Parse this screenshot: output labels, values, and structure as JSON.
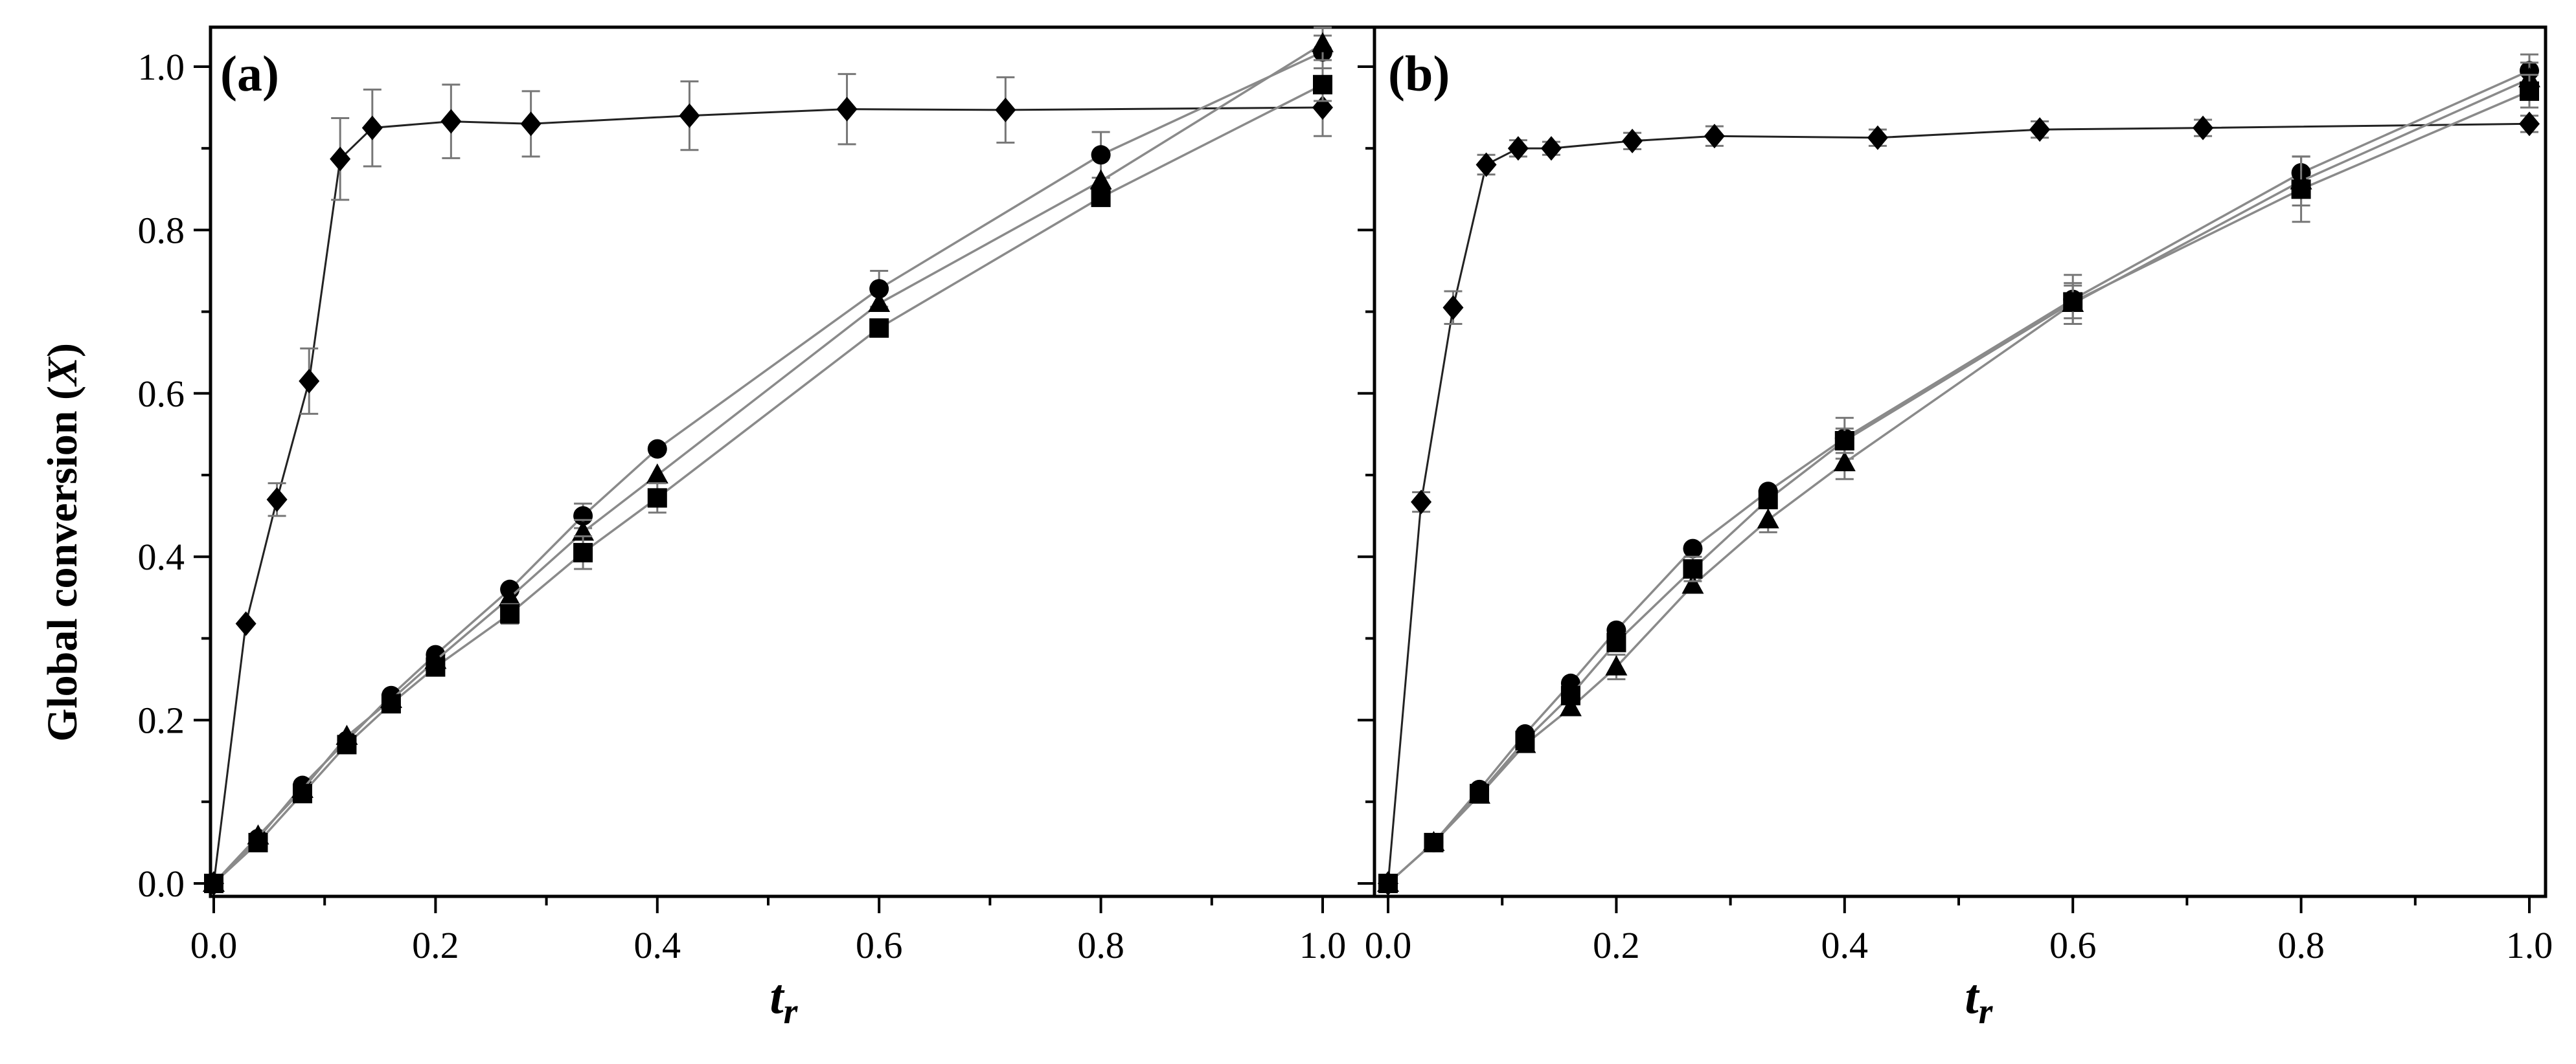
{
  "figure": {
    "ylabel": "Global conversion (",
    "ylabel_var": "X",
    "ylabel_close": ")",
    "xlabel_main": "t",
    "xlabel_sub": "r"
  },
  "colors": {
    "marker": "#000000",
    "line_dark": "#222222",
    "line_grey": "#8a8a8a",
    "errorbar": "#777777",
    "frame": "#000000"
  },
  "chart_data": [
    {
      "type": "line",
      "panel_label": "(a)",
      "xlim": [
        0.0,
        1.0
      ],
      "ylim": [
        0.0,
        1.0
      ],
      "x_ticks": [
        0.0,
        0.2,
        0.4,
        0.6,
        0.8,
        1.0
      ],
      "x_tick_labels": [
        "0.0",
        "0.2",
        "0.4",
        "0.6",
        "0.8",
        "1.0"
      ],
      "y_ticks": [
        0.0,
        0.2,
        0.4,
        0.6,
        0.8,
        1.0
      ],
      "y_tick_labels": [
        "0.0",
        "0.2",
        "0.4",
        "0.6",
        "0.8",
        "1.0"
      ],
      "grid": false,
      "series": [
        {
          "marker": "diamond",
          "line": "dark",
          "x": [
            0.0,
            0.029,
            0.057,
            0.086,
            0.114,
            0.143,
            0.214,
            0.286,
            0.429,
            0.571,
            0.714,
            1.0
          ],
          "y": [
            0.0,
            0.318,
            0.47,
            0.615,
            0.887,
            0.925,
            0.933,
            0.93,
            0.94,
            0.948,
            0.947,
            0.95
          ],
          "err": [
            0,
            0,
            0.02,
            0.04,
            0.05,
            0.047,
            0.045,
            0.04,
            0.042,
            0.043,
            0.04,
            0.035
          ]
        },
        {
          "marker": "circle",
          "line": "grey",
          "x": [
            0.0,
            0.04,
            0.08,
            0.12,
            0.16,
            0.2,
            0.267,
            0.333,
            0.4,
            0.6,
            0.8,
            1.0
          ],
          "y": [
            0.0,
            0.055,
            0.12,
            0.175,
            0.23,
            0.28,
            0.36,
            0.45,
            0.532,
            0.728,
            0.892,
            1.018
          ],
          "err": [
            0,
            0,
            0,
            0,
            0,
            0,
            0,
            0.015,
            0,
            0.022,
            0.028,
            0.02
          ]
        },
        {
          "marker": "triangle",
          "line": "grey",
          "x": [
            0.0,
            0.04,
            0.08,
            0.12,
            0.16,
            0.2,
            0.267,
            0.333,
            0.4,
            0.6,
            0.8,
            1.0
          ],
          "y": [
            0.0,
            0.058,
            0.115,
            0.18,
            0.225,
            0.273,
            0.35,
            0.43,
            0.5,
            0.71,
            0.86,
            1.028
          ],
          "err": [
            0,
            0,
            0,
            0,
            0,
            0,
            0,
            0.015,
            0,
            0,
            0,
            0.02
          ]
        },
        {
          "marker": "square",
          "line": "grey",
          "x": [
            0.0,
            0.04,
            0.08,
            0.12,
            0.16,
            0.2,
            0.267,
            0.333,
            0.4,
            0.6,
            0.8,
            1.0
          ],
          "y": [
            0.0,
            0.05,
            0.11,
            0.17,
            0.22,
            0.265,
            0.33,
            0.405,
            0.472,
            0.68,
            0.84,
            0.978
          ],
          "err": [
            0,
            0,
            0,
            0,
            0,
            0,
            0.012,
            0.02,
            0.018,
            0,
            0,
            0.02
          ]
        }
      ]
    },
    {
      "type": "line",
      "panel_label": "(b)",
      "xlim": [
        0.0,
        1.0
      ],
      "ylim": [
        0.0,
        1.0
      ],
      "x_ticks": [
        0.0,
        0.2,
        0.4,
        0.6,
        0.8,
        1.0
      ],
      "x_tick_labels": [
        "0.0",
        "0.2",
        "0.4",
        "0.6",
        "0.8",
        "1.0"
      ],
      "y_ticks": [
        0.0,
        0.2,
        0.4,
        0.6,
        0.8,
        1.0
      ],
      "y_tick_labels": [
        "0.0",
        "0.2",
        "0.4",
        "0.6",
        "0.8",
        "1.0"
      ],
      "grid": false,
      "series": [
        {
          "marker": "diamond",
          "line": "dark",
          "x": [
            0.0,
            0.029,
            0.057,
            0.086,
            0.114,
            0.143,
            0.214,
            0.286,
            0.429,
            0.571,
            0.714,
            1.0
          ],
          "y": [
            0.0,
            0.467,
            0.705,
            0.88,
            0.9,
            0.9,
            0.909,
            0.915,
            0.913,
            0.923,
            0.925,
            0.93
          ],
          "err": [
            0,
            0.012,
            0.02,
            0.012,
            0.01,
            0.008,
            0.01,
            0.012,
            0.01,
            0.01,
            0.01,
            0.01
          ]
        },
        {
          "marker": "circle",
          "line": "grey",
          "x": [
            0.0,
            0.04,
            0.08,
            0.12,
            0.16,
            0.2,
            0.267,
            0.333,
            0.4,
            0.6,
            0.8,
            1.0
          ],
          "y": [
            0.0,
            0.05,
            0.115,
            0.183,
            0.245,
            0.31,
            0.41,
            0.48,
            0.545,
            0.715,
            0.87,
            0.995
          ],
          "err": [
            0,
            0,
            0,
            0,
            0,
            0,
            0,
            0,
            0.025,
            0.03,
            0.02,
            0.02
          ]
        },
        {
          "marker": "triangle",
          "line": "grey",
          "x": [
            0.0,
            0.04,
            0.08,
            0.12,
            0.16,
            0.2,
            0.267,
            0.333,
            0.4,
            0.6,
            0.8,
            1.0
          ],
          "y": [
            0.0,
            0.05,
            0.108,
            0.17,
            0.215,
            0.265,
            0.365,
            0.445,
            0.515,
            0.71,
            0.86,
            0.985
          ],
          "err": [
            0,
            0,
            0,
            0,
            0,
            0.015,
            0,
            0.015,
            0.02,
            0.025,
            0.03,
            0.02
          ]
        },
        {
          "marker": "square",
          "line": "grey",
          "x": [
            0.0,
            0.04,
            0.08,
            0.12,
            0.16,
            0.2,
            0.267,
            0.333,
            0.4,
            0.6,
            0.8,
            1.0
          ],
          "y": [
            0.0,
            0.05,
            0.11,
            0.175,
            0.23,
            0.295,
            0.385,
            0.47,
            0.542,
            0.712,
            0.85,
            0.97
          ],
          "err": [
            0,
            0,
            0,
            0,
            0,
            0,
            0.015,
            0,
            0.015,
            0.02,
            0.04,
            0.02
          ]
        }
      ]
    }
  ]
}
